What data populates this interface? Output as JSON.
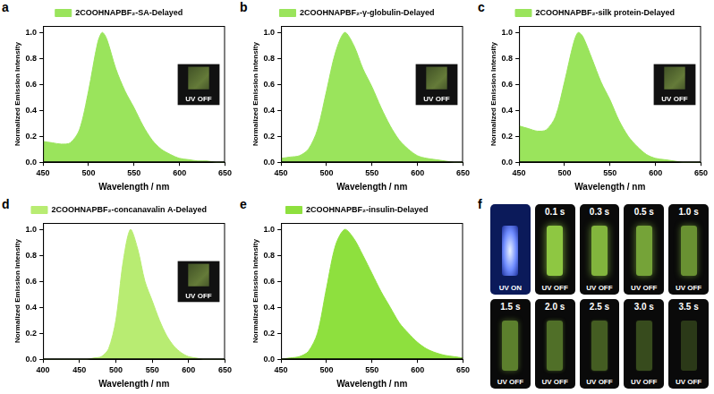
{
  "chart_data": [
    {
      "panel": "a",
      "type": "line",
      "x_label": "Wavelength / nm",
      "y_label": "Normalized Emission Intensity",
      "x": [
        450,
        460,
        470,
        480,
        490,
        500,
        510,
        515,
        520,
        530,
        540,
        550,
        560,
        570,
        580,
        590,
        600,
        610,
        620,
        630,
        640,
        650
      ],
      "series": [
        {
          "name": "2COOHNAPBF₂-SA-Delayed",
          "color": "#9ae45c",
          "values": [
            0.16,
            0.15,
            0.14,
            0.15,
            0.25,
            0.55,
            0.92,
            1.0,
            0.95,
            0.72,
            0.55,
            0.42,
            0.28,
            0.17,
            0.1,
            0.06,
            0.03,
            0.02,
            0.01,
            0.01,
            0.0,
            0.0
          ]
        }
      ],
      "xlim": [
        450,
        650
      ],
      "xticks": [
        450,
        500,
        550,
        600,
        650
      ],
      "ylim": [
        0,
        1.05
      ],
      "yticks": [
        {
          "value": 0,
          "label": "0.0"
        },
        0.2,
        0.4,
        0.6,
        0.8,
        {
          "value": 1,
          "label": "1.0"
        }
      ],
      "grid": false,
      "legend": "top",
      "annotations": [
        "UV OFF"
      ]
    },
    {
      "panel": "b",
      "type": "line",
      "x_label": "Wavelength / nm",
      "y_label": "Normalized Emission Intensity",
      "x": [
        450,
        460,
        470,
        480,
        490,
        500,
        510,
        520,
        530,
        540,
        550,
        560,
        570,
        580,
        590,
        600,
        610,
        620,
        630,
        640,
        650
      ],
      "series": [
        {
          "name": "2COOHNAPBF₂-γ-globulin-Delayed",
          "color": "#9ae45c",
          "values": [
            0.03,
            0.04,
            0.05,
            0.1,
            0.25,
            0.55,
            0.85,
            1.0,
            0.9,
            0.72,
            0.58,
            0.42,
            0.28,
            0.17,
            0.1,
            0.05,
            0.03,
            0.02,
            0.01,
            0.0,
            0.0
          ]
        }
      ],
      "xlim": [
        450,
        650
      ],
      "xticks": [
        450,
        500,
        550,
        600,
        650
      ],
      "ylim": [
        0,
        1.05
      ],
      "yticks": [
        {
          "value": 0,
          "label": "0.0"
        },
        0.2,
        0.4,
        0.6,
        0.8,
        {
          "value": 1,
          "label": "1.0"
        }
      ],
      "grid": false,
      "legend": "top",
      "annotations": [
        "UV OFF"
      ]
    },
    {
      "panel": "c",
      "type": "line",
      "x_label": "Wavelength / nm",
      "y_label": "Normalized Emission Intensity",
      "x": [
        450,
        460,
        470,
        480,
        490,
        500,
        510,
        515,
        520,
        530,
        540,
        550,
        560,
        570,
        580,
        590,
        600,
        610,
        620,
        630,
        640,
        650
      ],
      "series": [
        {
          "name": "2COOHNAPBF₂-silk protein-Delayed",
          "color": "#9ae45c",
          "values": [
            0.28,
            0.26,
            0.24,
            0.25,
            0.35,
            0.62,
            0.92,
            1.0,
            0.97,
            0.8,
            0.62,
            0.48,
            0.32,
            0.2,
            0.12,
            0.06,
            0.03,
            0.02,
            0.01,
            0.0,
            0.0,
            0.0
          ]
        }
      ],
      "xlim": [
        450,
        650
      ],
      "xticks": [
        450,
        500,
        550,
        600,
        650
      ],
      "ylim": [
        0,
        1.05
      ],
      "yticks": [
        {
          "value": 0,
          "label": "0.0"
        },
        0.2,
        0.4,
        0.6,
        0.8,
        {
          "value": 1,
          "label": "1.0"
        }
      ],
      "grid": false,
      "legend": "top",
      "annotations": [
        "UV OFF"
      ]
    },
    {
      "panel": "d",
      "type": "line",
      "x_label": "Wavelength / nm",
      "y_label": "Normalized Emission Intensity",
      "x": [
        400,
        420,
        440,
        460,
        470,
        480,
        490,
        500,
        510,
        520,
        530,
        540,
        550,
        560,
        570,
        580,
        590,
        600,
        610,
        620,
        630,
        640,
        650
      ],
      "series": [
        {
          "name": "2COOHNAPBF₂-concanavalin A-Delayed",
          "color": "#b8ec72",
          "values": [
            0.0,
            0.0,
            0.0,
            0.0,
            0.01,
            0.02,
            0.08,
            0.3,
            0.75,
            1.0,
            0.85,
            0.6,
            0.45,
            0.3,
            0.18,
            0.1,
            0.05,
            0.02,
            0.01,
            0.0,
            0.0,
            0.0,
            0.0
          ]
        }
      ],
      "xlim": [
        400,
        650
      ],
      "xticks": [
        400,
        450,
        500,
        550,
        600,
        650
      ],
      "ylim": [
        0,
        1.05
      ],
      "yticks": [
        {
          "value": 0,
          "label": "0.0"
        },
        0.2,
        0.4,
        0.6,
        0.8,
        {
          "value": 1,
          "label": "1.0"
        }
      ],
      "grid": false,
      "legend": "top",
      "annotations": [
        "UV OFF"
      ]
    },
    {
      "panel": "e",
      "type": "line",
      "x_label": "Wavelength / nm",
      "y_label": "Normalized Emission Intensity",
      "x": [
        450,
        460,
        470,
        480,
        490,
        500,
        510,
        520,
        530,
        540,
        550,
        560,
        570,
        580,
        590,
        600,
        610,
        620,
        630,
        640,
        650
      ],
      "series": [
        {
          "name": "2COOHNAPBF₂-insulin-Delayed",
          "color": "#8ee03e",
          "values": [
            0.0,
            0.01,
            0.02,
            0.06,
            0.2,
            0.55,
            0.88,
            1.0,
            0.93,
            0.8,
            0.66,
            0.52,
            0.4,
            0.28,
            0.2,
            0.13,
            0.08,
            0.05,
            0.03,
            0.02,
            0.01
          ]
        }
      ],
      "xlim": [
        450,
        650
      ],
      "xticks": [
        450,
        500,
        550,
        600,
        650
      ],
      "ylim": [
        0,
        1.05
      ],
      "yticks": [
        {
          "value": 0,
          "label": "0.0"
        },
        0.2,
        0.4,
        0.6,
        0.8,
        {
          "value": 1,
          "label": "1.0"
        }
      ],
      "grid": false,
      "legend": "top"
    }
  ],
  "photo_panel": {
    "panel": "f",
    "frames": [
      {
        "caption": "UV ON"
      },
      {
        "time": "0.1 s",
        "caption": "UV OFF"
      },
      {
        "time": "0.3 s",
        "caption": "UV OFF"
      },
      {
        "time": "0.5 s",
        "caption": "UV OFF"
      },
      {
        "time": "1.0 s",
        "caption": "UV OFF"
      },
      {
        "time": "1.5 s",
        "caption": "UV OFF"
      },
      {
        "time": "2.0 s",
        "caption": "UV OFF"
      },
      {
        "time": "2.5 s",
        "caption": "UV OFF"
      },
      {
        "time": "3.0 s",
        "caption": "UV OFF"
      },
      {
        "time": "3.5 s",
        "caption": "UV OFF"
      }
    ]
  }
}
